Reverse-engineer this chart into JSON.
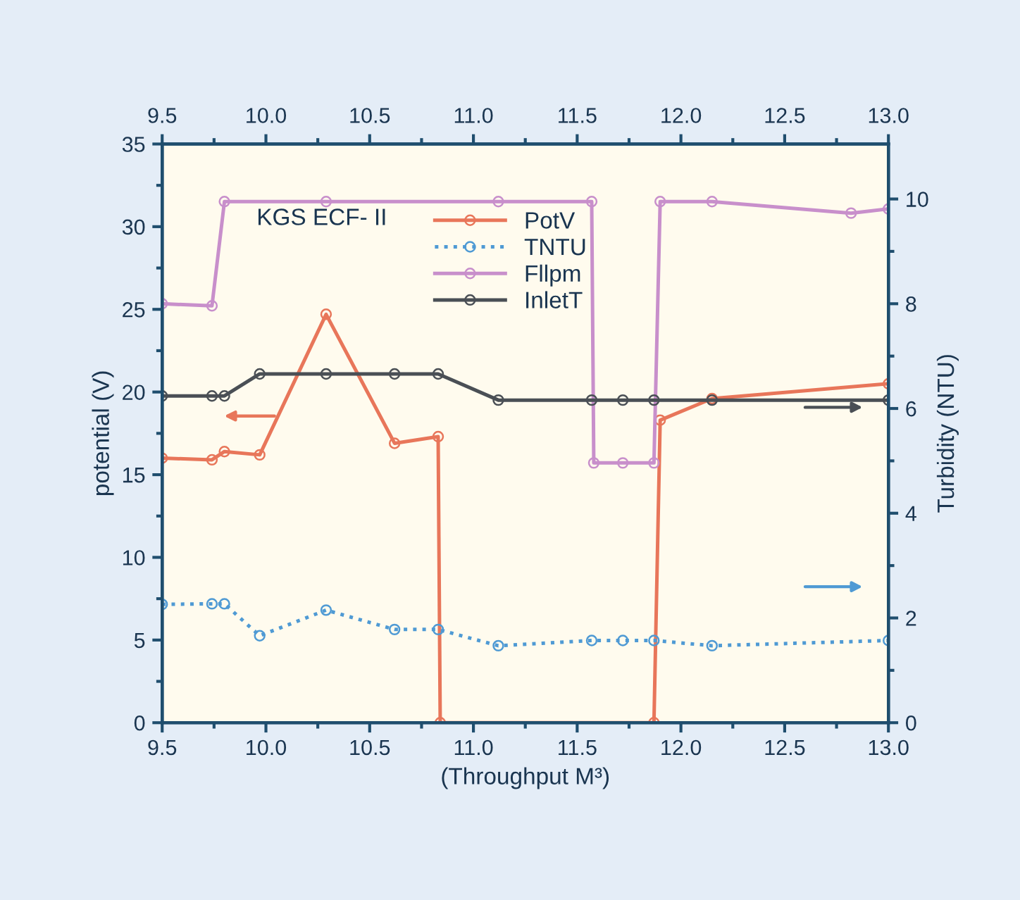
{
  "chart_data": {
    "type": "line",
    "xlabel": "(Throughput M³)",
    "ylabel": "potential (V)",
    "y2label": "Turbidity (NTU)",
    "annotations": [
      "KGS ECF- II"
    ],
    "xlim": [
      9.5,
      13.0
    ],
    "xticks": [
      {
        "value": 9.5,
        "label": "9.5"
      },
      {
        "value": 10.0,
        "label": "10.0"
      },
      {
        "value": 10.5,
        "label": "10.5"
      },
      {
        "value": 11.0,
        "label": "11.0"
      },
      {
        "value": 11.5,
        "label": "11.5"
      },
      {
        "value": 12.0,
        "label": "12.0"
      },
      {
        "value": 12.5,
        "label": "12.5"
      },
      {
        "value": 13.0,
        "label": "13.0"
      }
    ],
    "x2lim": [
      9.5,
      13.0
    ],
    "x2ticks": [
      {
        "value": 9.5,
        "label": "9.5"
      },
      {
        "value": 10.0,
        "label": "10.0"
      },
      {
        "value": 10.5,
        "label": "10.5"
      },
      {
        "value": 11.0,
        "label": "11.0"
      },
      {
        "value": 11.5,
        "label": "11.5"
      },
      {
        "value": 12.0,
        "label": "12.0"
      },
      {
        "value": 12.5,
        "label": "12.5"
      },
      {
        "value": 13.0,
        "label": "13.0"
      }
    ],
    "ylim": [
      0,
      35
    ],
    "yticks": [
      0,
      5,
      10,
      15,
      20,
      25,
      30,
      35
    ],
    "y2lim": [
      0,
      11.05
    ],
    "y2ticks": [
      0,
      2,
      4,
      6,
      8,
      10
    ],
    "grid": false,
    "legend": "top",
    "marker": "circle",
    "series": [
      {
        "name": "PotV",
        "color": "#e8765a",
        "line_style": "solid",
        "x": [
          9.5,
          9.74,
          9.8,
          9.97,
          10.29,
          10.62,
          10.83,
          10.84,
          11.87,
          11.9,
          12.15,
          13.0
        ],
        "values": [
          16.0,
          15.9,
          16.4,
          16.2,
          24.7,
          16.9,
          17.3,
          0,
          0,
          18.3,
          19.6,
          20.5
        ]
      },
      {
        "name": "TNTU",
        "color": "#4f9ad4",
        "line_style": "dotted",
        "axis": "y2",
        "x": [
          9.5,
          9.74,
          9.8,
          9.97,
          10.29,
          10.62,
          10.83,
          11.12,
          11.57,
          11.72,
          11.87,
          12.15,
          13.0
        ],
        "values": [
          2.26,
          2.27,
          2.27,
          1.66,
          2.15,
          1.78,
          1.78,
          1.47,
          1.57,
          1.57,
          1.57,
          1.47,
          1.57
        ]
      },
      {
        "name": "Fllpm",
        "color": "#c88fcb",
        "line_style": "solid",
        "axis": "y2",
        "x": [
          9.5,
          9.74,
          9.8,
          10.29,
          11.12,
          11.57,
          11.58,
          11.72,
          11.87,
          11.9,
          12.15,
          12.82,
          13.0
        ],
        "values": [
          8.0,
          7.96,
          9.95,
          9.95,
          9.95,
          9.95,
          4.96,
          4.96,
          4.96,
          9.95,
          9.95,
          9.73,
          9.81
        ]
      },
      {
        "name": "InletT",
        "color": "#4a4f55",
        "line_style": "solid",
        "axis": "y2",
        "x": [
          9.5,
          9.74,
          9.8,
          9.97,
          10.29,
          10.62,
          10.83,
          11.12,
          11.57,
          11.72,
          11.87,
          12.15,
          13.0
        ],
        "values": [
          6.24,
          6.24,
          6.24,
          6.66,
          6.66,
          6.66,
          6.66,
          6.16,
          6.16,
          6.16,
          6.16,
          6.16,
          6.16
        ]
      }
    ]
  }
}
